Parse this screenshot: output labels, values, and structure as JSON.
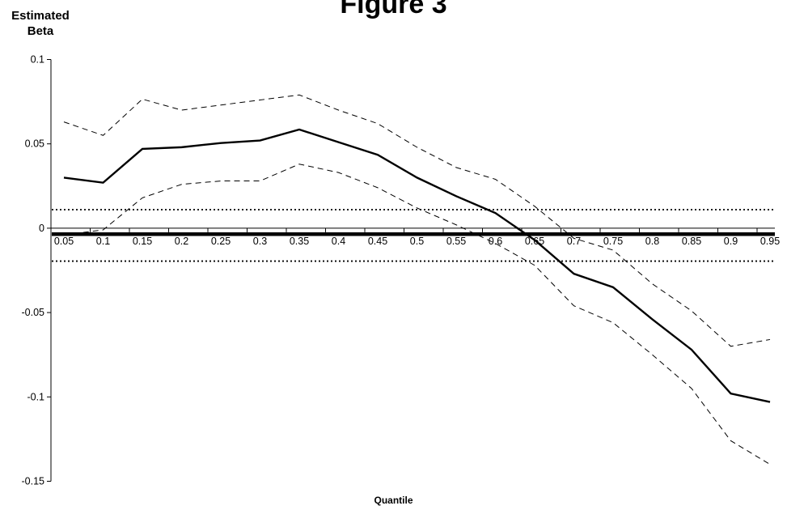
{
  "chart_data": {
    "type": "line",
    "title": "Figure 3",
    "ylabel": "Estimated Beta",
    "xlabel": "Quantile",
    "x": [
      "0.05",
      "0.1",
      "0.15",
      "0.2",
      "0.25",
      "0.3",
      "0.35",
      "0.4",
      "0.45",
      "0.5",
      "0.55",
      "0.6",
      "0.65",
      "0.7",
      "0.75",
      "0.8",
      "0.85",
      "0.9",
      "0.95"
    ],
    "ylim": [
      -0.15,
      0.1
    ],
    "yticks": [
      "0.1",
      "0.05",
      "0",
      "-0.05",
      "-0.1",
      "-0.15"
    ],
    "ytick_values": [
      0.1,
      0.05,
      0,
      -0.05,
      -0.1,
      -0.15
    ],
    "grid": false,
    "series": [
      {
        "style": "solid",
        "values": [
          0.03,
          0.027,
          0.047,
          0.048,
          0.0505,
          0.052,
          0.0585,
          0.051,
          0.0435,
          0.03,
          0.019,
          0.009,
          -0.007,
          -0.027,
          -0.035,
          -0.054,
          -0.072,
          -0.098,
          -0.103
        ]
      },
      {
        "style": "dashed",
        "values": [
          0.063,
          0.055,
          0.0765,
          0.07,
          0.073,
          0.076,
          0.079,
          0.07,
          0.062,
          0.048,
          0.036,
          0.029,
          0.013,
          -0.006,
          -0.013,
          -0.033,
          -0.049,
          -0.07,
          -0.066
        ]
      },
      {
        "style": "dashed",
        "values": [
          -0.004,
          -0.001,
          0.018,
          0.026,
          0.028,
          0.028,
          0.038,
          0.033,
          0.024,
          0.012,
          0.002,
          -0.009,
          -0.022,
          -0.046,
          -0.056,
          -0.075,
          -0.095,
          -0.126,
          -0.14
        ]
      },
      {
        "style": "thick",
        "values": [
          -0.0035,
          -0.0035,
          -0.0035,
          -0.0035,
          -0.0035,
          -0.0035,
          -0.0035,
          -0.0035,
          -0.0035,
          -0.0035,
          -0.0035,
          -0.0035,
          -0.0035,
          -0.0035,
          -0.0035,
          -0.0035,
          -0.0035,
          -0.0035,
          -0.0035
        ]
      },
      {
        "style": "dotted",
        "values": [
          0.011,
          0.011,
          0.011,
          0.011,
          0.011,
          0.011,
          0.011,
          0.011,
          0.011,
          0.011,
          0.011,
          0.011,
          0.011,
          0.011,
          0.011,
          0.011,
          0.011,
          0.011,
          0.011
        ]
      },
      {
        "style": "dotted",
        "values": [
          -0.0195,
          -0.0195,
          -0.0195,
          -0.0195,
          -0.0195,
          -0.0195,
          -0.0195,
          -0.0195,
          -0.0195,
          -0.0195,
          -0.0195,
          -0.0195,
          -0.0195,
          -0.0195,
          -0.0195,
          -0.0195,
          -0.0195,
          -0.0195,
          -0.0195
        ]
      }
    ]
  }
}
